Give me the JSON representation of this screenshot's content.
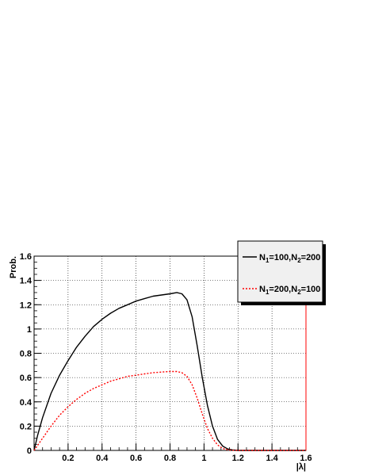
{
  "chart_data": {
    "type": "line",
    "title": "",
    "xlabel": "|λ|",
    "ylabel": "Prob.",
    "xlim": [
      0,
      1.6
    ],
    "ylim": [
      0,
      1.6
    ],
    "xticks": [
      "0.2",
      "0.4",
      "0.6",
      "0.8",
      "1",
      "1.2",
      "1.4",
      "1.6"
    ],
    "yticks": [
      "0",
      "0.2",
      "0.4",
      "0.6",
      "0.8",
      "1",
      "1.2",
      "1.4",
      "1.6"
    ],
    "grid": true,
    "legend_position": "top-right",
    "series": [
      {
        "name": "N1=100,N2=200",
        "color": "#000000",
        "style": "solid",
        "points": [
          [
            0.0,
            0.0
          ],
          [
            0.02,
            0.12
          ],
          [
            0.05,
            0.27
          ],
          [
            0.1,
            0.47
          ],
          [
            0.15,
            0.62
          ],
          [
            0.2,
            0.74
          ],
          [
            0.25,
            0.85
          ],
          [
            0.3,
            0.94
          ],
          [
            0.35,
            1.02
          ],
          [
            0.4,
            1.08
          ],
          [
            0.45,
            1.13
          ],
          [
            0.5,
            1.17
          ],
          [
            0.55,
            1.2
          ],
          [
            0.6,
            1.23
          ],
          [
            0.65,
            1.25
          ],
          [
            0.7,
            1.27
          ],
          [
            0.75,
            1.28
          ],
          [
            0.8,
            1.29
          ],
          [
            0.84,
            1.3
          ],
          [
            0.87,
            1.29
          ],
          [
            0.9,
            1.24
          ],
          [
            0.93,
            1.1
          ],
          [
            0.96,
            0.86
          ],
          [
            0.99,
            0.6
          ],
          [
            1.02,
            0.37
          ],
          [
            1.05,
            0.2
          ],
          [
            1.08,
            0.09
          ],
          [
            1.11,
            0.035
          ],
          [
            1.14,
            0.012
          ],
          [
            1.17,
            0.003
          ],
          [
            1.2,
            0.0
          ],
          [
            1.6,
            0.0
          ]
        ]
      },
      {
        "name": "N1=200,N2=100",
        "color": "#ff0000",
        "style": "dashed",
        "points": [
          [
            0.0,
            0.0
          ],
          [
            0.02,
            0.04
          ],
          [
            0.05,
            0.1
          ],
          [
            0.1,
            0.2
          ],
          [
            0.15,
            0.29
          ],
          [
            0.2,
            0.36
          ],
          [
            0.25,
            0.42
          ],
          [
            0.3,
            0.47
          ],
          [
            0.35,
            0.51
          ],
          [
            0.4,
            0.54
          ],
          [
            0.45,
            0.57
          ],
          [
            0.5,
            0.59
          ],
          [
            0.55,
            0.61
          ],
          [
            0.6,
            0.62
          ],
          [
            0.65,
            0.63
          ],
          [
            0.7,
            0.64
          ],
          [
            0.75,
            0.645
          ],
          [
            0.8,
            0.65
          ],
          [
            0.84,
            0.65
          ],
          [
            0.87,
            0.64
          ],
          [
            0.9,
            0.61
          ],
          [
            0.93,
            0.54
          ],
          [
            0.96,
            0.43
          ],
          [
            0.99,
            0.3
          ],
          [
            1.02,
            0.18
          ],
          [
            1.05,
            0.1
          ],
          [
            1.08,
            0.045
          ],
          [
            1.11,
            0.016
          ],
          [
            1.14,
            0.005
          ],
          [
            1.17,
            0.001
          ],
          [
            1.2,
            0.0
          ],
          [
            1.6,
            0.0
          ]
        ]
      }
    ]
  },
  "legend": {
    "entries": [
      {
        "prefix": "N",
        "sub1": "1",
        "mid": "=100,N",
        "sub2": "2",
        "suffix": "=200"
      },
      {
        "prefix": "N",
        "sub1": "1",
        "mid": "=200,N",
        "sub2": "2",
        "suffix": "=100"
      }
    ]
  }
}
